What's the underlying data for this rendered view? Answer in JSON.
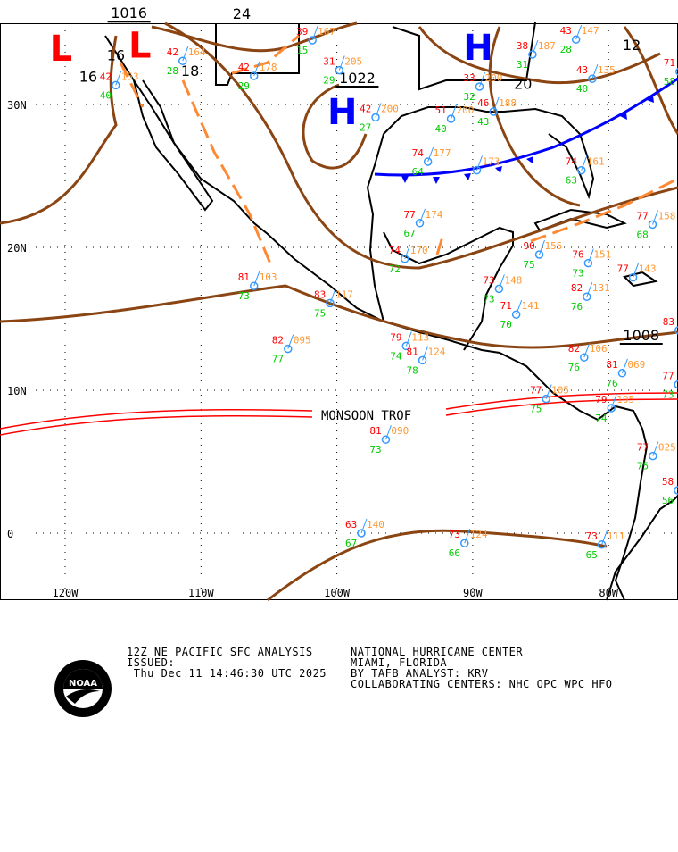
{
  "map": {
    "lat_labels": [
      "30N",
      "20N",
      "10N",
      "0"
    ],
    "lon_labels": [
      "120W",
      "110W",
      "100W",
      "90W",
      "80W"
    ],
    "pressure_labels": [
      {
        "text": "1016",
        "lon": -115.3,
        "lat": 35.3
      },
      {
        "text": "24",
        "lon": -107,
        "lat": 36
      },
      {
        "text": "16",
        "lon": -118.3,
        "lat": 31.6
      },
      {
        "text": "16",
        "lon": -116,
        "lat": 33.1
      },
      {
        "text": "18",
        "lon": -110.8,
        "lat": 32.0
      },
      {
        "text": "1022",
        "lon": -98.5,
        "lat": 31.5
      },
      {
        "text": "20",
        "lon": -86.3,
        "lat": 31.1
      },
      {
        "text": "12",
        "lon": -78.3,
        "lat": 33.8
      },
      {
        "text": "1008",
        "lon": -77.6,
        "lat": 13.5
      }
    ],
    "highs_lows": [
      {
        "symbol": "L",
        "lon": -120.3,
        "lat": 34.2,
        "color": "#ff0000"
      },
      {
        "symbol": "L",
        "lon": -114.5,
        "lat": 34.4,
        "color": "#ff0000"
      },
      {
        "symbol": "H",
        "lon": -89.6,
        "lat": 34.0,
        "color": "#0000ff"
      },
      {
        "symbol": "H",
        "lon": -99.6,
        "lat": 29.5,
        "color": "#0000ff"
      }
    ],
    "feature_label": "MONSOON TROF",
    "stations": [
      {
        "t": "81",
        "p": "103",
        "d": "73",
        "lon": -106.1,
        "lat": 17.3
      },
      {
        "t": "82",
        "p": "095",
        "d": "77",
        "lon": -103.6,
        "lat": 12.9
      },
      {
        "t": "83",
        "p": "117",
        "d": "75",
        "lon": -100.5,
        "lat": 16.1
      },
      {
        "t": "79",
        "p": "113",
        "d": "74",
        "lon": -94.9,
        "lat": 13.1
      },
      {
        "t": "81",
        "p": "124",
        "d": "78",
        "lon": -93.7,
        "lat": 12.6
      },
      {
        "t": "81",
        "p": "090",
        "d": "73",
        "lon": -96.4,
        "lat": 8.3
      },
      {
        "t": "63",
        "p": "140",
        "d": "67",
        "lon": -98.2,
        "lat": 0.0
      },
      {
        "t": "73",
        "p": "124",
        "d": "66",
        "lon": -90.6,
        "lat": -0.7
      },
      {
        "t": "77",
        "p": "174",
        "d": "67",
        "lon": -93.9,
        "lat": 21.7
      },
      {
        "t": "74",
        "p": "170",
        "d": "72",
        "lon": -95.0,
        "lat": 19.2
      },
      {
        "t": "74",
        "p": "177",
        "d": "64",
        "lon": -93.3,
        "lat": 26.0
      },
      {
        "t": "",
        "p": "173",
        "d": "",
        "lon": -89.7,
        "lat": 25.4
      },
      {
        "t": "90",
        "p": "155",
        "d": "75",
        "lon": -85.1,
        "lat": 19.5
      },
      {
        "t": "76",
        "p": "151",
        "d": "73",
        "lon": -81.5,
        "lat": 18.9
      },
      {
        "t": "77",
        "p": "143",
        "d": "",
        "lon": -78.2,
        "lat": 17.9
      },
      {
        "t": "82",
        "p": "131",
        "d": "76",
        "lon": -81.6,
        "lat": 16.8
      },
      {
        "t": "82",
        "p": "106",
        "d": "76",
        "lon": -81.8,
        "lat": 12.3
      },
      {
        "t": "71",
        "p": "141",
        "d": "70",
        "lon": -86.8,
        "lat": 15.3
      },
      {
        "t": "73",
        "p": "148",
        "d": "73",
        "lon": -87.8,
        "lat": 17.1
      },
      {
        "t": "81",
        "p": "069",
        "d": "76",
        "lon": -79.0,
        "lat": 11.2
      },
      {
        "t": "77",
        "p": "105",
        "d": "75",
        "lon": -84.6,
        "lat": 9.4
      },
      {
        "t": "79",
        "p": "105",
        "d": "74",
        "lon": -79.8,
        "lat": 9.0
      },
      {
        "t": "77",
        "p": "025",
        "d": "75",
        "lon": -72.8,
        "lat": 5.4
      },
      {
        "t": "83",
        "p": "",
        "d": "",
        "lon": -70.9,
        "lat": 14.2
      },
      {
        "t": "77",
        "p": "",
        "d": "73",
        "lon": -71.2,
        "lat": 10.4
      },
      {
        "t": "73",
        "p": "111",
        "d": "65",
        "lon": -80.5,
        "lat": -0.8
      },
      {
        "t": "39",
        "p": "167",
        "d": "15",
        "lon": -101.8,
        "lat": 34.5
      },
      {
        "t": "42",
        "p": "178",
        "d": "29",
        "lon": -106.1,
        "lat": 32.0
      },
      {
        "t": "42",
        "p": "164",
        "d": "28",
        "lon": -110.3,
        "lat": 32.3
      },
      {
        "t": "42",
        "p": "153",
        "d": "40",
        "lon": -116.8,
        "lat": 32.6
      },
      {
        "t": "31",
        "p": "205",
        "d": "29",
        "lon": -99.3,
        "lat": 31.4
      },
      {
        "t": "42",
        "p": "200",
        "d": "27",
        "lon": -98.2,
        "lat": 29.1
      },
      {
        "t": "33",
        "p": "200",
        "d": "32",
        "lon": -89.5,
        "lat": 33.0
      },
      {
        "t": "38",
        "p": "187",
        "d": "31",
        "lon": -85.6,
        "lat": 33.0
      },
      {
        "t": "43",
        "p": "147",
        "d": "28",
        "lon": -82.4,
        "lat": 34.8
      },
      {
        "t": "43",
        "p": "135",
        "d": "40",
        "lon": -81.2,
        "lat": 31.8
      },
      {
        "t": "74",
        "p": "161",
        "d": "63",
        "lon": -82.0,
        "lat": 25.4
      },
      {
        "t": "46",
        "p": "188",
        "d": "43",
        "lon": -89.0,
        "lat": 29.5
      },
      {
        "t": "51",
        "p": "200",
        "d": "40",
        "lon": -91.6,
        "lat": 29.5
      },
      {
        "t": "77",
        "p": "158",
        "d": "68",
        "lon": -74.4,
        "lat": 21.6
      },
      {
        "t": "58",
        "p": "",
        "d": "56",
        "lon": -72.8,
        "lat": 3.0
      },
      {
        "t": "71",
        "p": "",
        "d": "58",
        "lon": -71.1,
        "lat": 32.3
      }
    ]
  },
  "footer": {
    "line1_left": "12Z NE PACIFIC SFC ANALYSIS",
    "line2_left": "ISSUED:",
    "line3_left": " Thu Dec 11 14:46:30 UTC 2025",
    "line1_right": "NATIONAL HURRICANE CENTER",
    "line2_right": "MIAMI, FLORIDA",
    "line3_right": "BY TAFB ANALYST: KRV",
    "line4_right": "COLLABORATING CENTERS: NHC OPC WPC HFO",
    "logo_text": "NOAA"
  },
  "colors": {
    "temp": "#ff0000",
    "dew": "#00cc00",
    "pressure": "#ff9933",
    "station": "#3399ff",
    "isobar": "#8b4513",
    "trough": "#ff8833",
    "cold_front": "#0000ff",
    "monsoon": "#ff0000"
  }
}
